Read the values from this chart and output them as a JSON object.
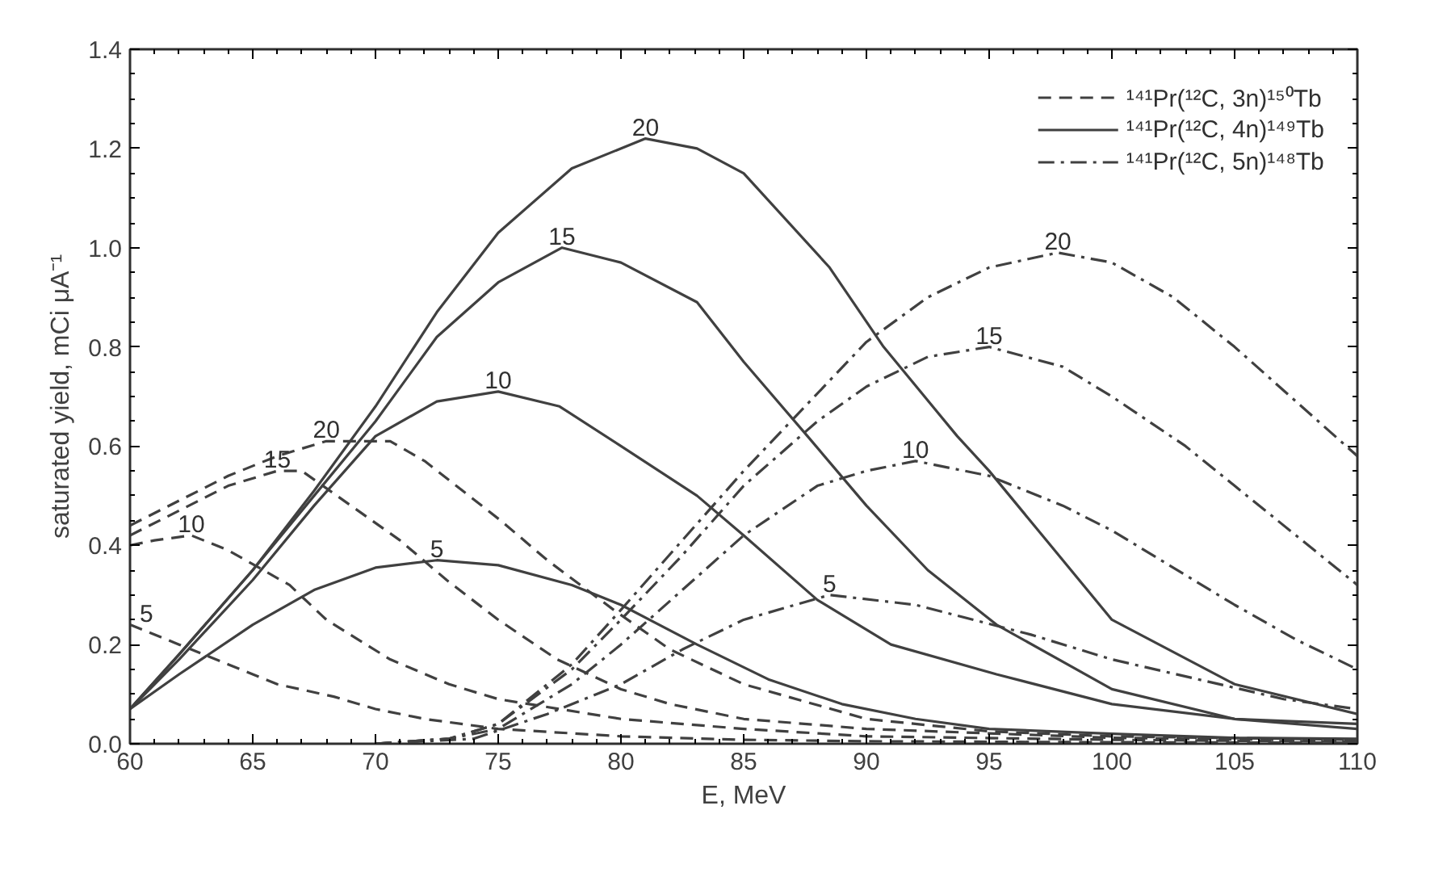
{
  "chart_data": {
    "type": "line",
    "xlabel": "E, MeV",
    "ylabel": "saturated yield, mCi μA⁻¹",
    "xlim": [
      60,
      110
    ],
    "ylim": [
      0,
      1.4
    ],
    "xticks": [
      60,
      65,
      70,
      75,
      80,
      85,
      90,
      95,
      100,
      105,
      110
    ],
    "yticks": [
      {
        "value": 0,
        "label": "0.0"
      },
      {
        "value": 0.2,
        "label": "0.2"
      },
      {
        "value": 0.4,
        "label": "0.4"
      },
      {
        "value": 0.6,
        "label": "0.6"
      },
      {
        "value": 0.8,
        "label": "0.8"
      },
      {
        "value": 1.0,
        "label": "1.0"
      },
      {
        "value": 1.2,
        "label": "1.2"
      },
      {
        "value": 1.4,
        "label": "1.4"
      }
    ],
    "tick_labels": "xy",
    "grid": false,
    "legend": "top right",
    "marker": "none",
    "series": [
      {
        "name": "¹⁴¹Pr(¹²C, 3n)¹⁵⁰Tb",
        "color": "#404040",
        "line_style": "dashed",
        "x": [
          60,
          62,
          64,
          66,
          68.3,
          70,
          72,
          75,
          80,
          85,
          90,
          100,
          110
        ],
        "values": [
          0.24,
          0.2,
          0.16,
          0.12,
          0.095,
          0.07,
          0.05,
          0.03,
          0.015,
          0.008,
          0.005,
          0.003,
          0.002
        ]
      },
      {
        "color": "#404040",
        "line_style": "dashed",
        "x": [
          60,
          61,
          62.5,
          64,
          66.5,
          68,
          70.6,
          73,
          75,
          80,
          85,
          90,
          100,
          110
        ],
        "values": [
          0.4,
          0.41,
          0.42,
          0.39,
          0.32,
          0.25,
          0.17,
          0.12,
          0.09,
          0.05,
          0.03,
          0.015,
          0.008,
          0.004
        ]
      },
      {
        "color": "#404040",
        "line_style": "dashed",
        "x": [
          60,
          62,
          64,
          66,
          67,
          69,
          71,
          72.9,
          75,
          77.4,
          80,
          82,
          85,
          90,
          100,
          110
        ],
        "values": [
          0.42,
          0.47,
          0.52,
          0.55,
          0.55,
          0.48,
          0.41,
          0.33,
          0.25,
          0.17,
          0.11,
          0.08,
          0.05,
          0.03,
          0.012,
          0.006
        ]
      },
      {
        "color": "#404040",
        "line_style": "dashed",
        "x": [
          60,
          62,
          64,
          66,
          68,
          70.6,
          72,
          75.1,
          77,
          79.7,
          82,
          85,
          90,
          95,
          100,
          110
        ],
        "values": [
          0.44,
          0.49,
          0.54,
          0.58,
          0.61,
          0.61,
          0.57,
          0.45,
          0.37,
          0.27,
          0.19,
          0.12,
          0.05,
          0.025,
          0.015,
          0.008
        ]
      },
      {
        "name": "¹⁴¹Pr(¹²C, 4n)¹⁴⁹Tb",
        "color": "#404040",
        "line_style": "solid",
        "x": [
          60,
          62,
          65,
          67.5,
          70,
          72.5,
          75,
          78,
          80,
          83.1,
          86,
          89,
          92,
          95,
          100,
          105,
          110
        ],
        "values": [
          0.07,
          0.14,
          0.24,
          0.31,
          0.355,
          0.37,
          0.36,
          0.32,
          0.28,
          0.2,
          0.13,
          0.08,
          0.05,
          0.03,
          0.02,
          0.012,
          0.01
        ]
      },
      {
        "color": "#404040",
        "line_style": "solid",
        "x": [
          60,
          62,
          65,
          67.5,
          70,
          72.5,
          75,
          77.5,
          80,
          83.1,
          85,
          88,
          91,
          95.3,
          100,
          105,
          110
        ],
        "values": [
          0.07,
          0.17,
          0.33,
          0.48,
          0.62,
          0.69,
          0.71,
          0.68,
          0.6,
          0.5,
          0.42,
          0.29,
          0.2,
          0.14,
          0.08,
          0.05,
          0.04
        ]
      },
      {
        "color": "#404040",
        "line_style": "solid",
        "x": [
          60,
          62,
          65,
          67.5,
          70,
          72.5,
          75,
          77.6,
          80,
          83.1,
          85,
          87.6,
          90,
          92.5,
          95.3,
          100,
          105,
          110
        ],
        "values": [
          0.07,
          0.18,
          0.35,
          0.5,
          0.65,
          0.82,
          0.93,
          1.0,
          0.97,
          0.89,
          0.77,
          0.62,
          0.48,
          0.35,
          0.24,
          0.11,
          0.05,
          0.03
        ]
      },
      {
        "color": "#404040",
        "line_style": "solid",
        "x": [
          60,
          62,
          65,
          67.5,
          70,
          72.5,
          75,
          78,
          81,
          83.1,
          85,
          88.5,
          90.7,
          93.7,
          95,
          97.5,
          100,
          105,
          110
        ],
        "values": [
          0.07,
          0.18,
          0.35,
          0.51,
          0.68,
          0.87,
          1.03,
          1.16,
          1.22,
          1.2,
          1.15,
          0.96,
          0.8,
          0.62,
          0.55,
          0.4,
          0.25,
          0.12,
          0.06
        ]
      },
      {
        "name": "¹⁴¹Pr(¹²C, 5n)¹⁴⁸Tb",
        "color": "#404040",
        "line_style": "dashdot",
        "x": [
          70,
          74,
          77,
          80,
          82.5,
          85,
          88.5,
          92,
          96.7,
          100,
          103.5,
          107,
          110
        ],
        "values": [
          0,
          0.01,
          0.06,
          0.12,
          0.19,
          0.25,
          0.3,
          0.28,
          0.22,
          0.17,
          0.13,
          0.09,
          0.07
        ]
      },
      {
        "color": "#404040",
        "line_style": "dashdot",
        "x": [
          70,
          73,
          75,
          78,
          80,
          82.5,
          85,
          88,
          90,
          92,
          95,
          98,
          100,
          103,
          105,
          107.5,
          110
        ],
        "values": [
          0,
          0.01,
          0.03,
          0.12,
          0.2,
          0.31,
          0.42,
          0.52,
          0.55,
          0.57,
          0.54,
          0.48,
          0.43,
          0.34,
          0.28,
          0.21,
          0.15
        ]
      },
      {
        "color": "#404040",
        "line_style": "dashdot",
        "x": [
          70,
          73,
          75,
          78,
          80,
          82.5,
          85,
          88,
          90,
          92.5,
          95,
          98,
          100,
          103,
          105,
          107.5,
          110
        ],
        "values": [
          0,
          0.01,
          0.04,
          0.15,
          0.25,
          0.38,
          0.52,
          0.65,
          0.72,
          0.78,
          0.8,
          0.76,
          0.7,
          0.6,
          0.52,
          0.42,
          0.32
        ]
      },
      {
        "color": "#404040",
        "line_style": "dashdot",
        "x": [
          70,
          73,
          75,
          78,
          80,
          82.5,
          85,
          87.5,
          90,
          92.5,
          95,
          97.8,
          100,
          102.5,
          105,
          107.5,
          110
        ],
        "values": [
          0,
          0.01,
          0.04,
          0.16,
          0.27,
          0.41,
          0.55,
          0.68,
          0.81,
          0.9,
          0.96,
          0.99,
          0.97,
          0.9,
          0.8,
          0.69,
          0.58
        ]
      }
    ],
    "annotations": [
      "5",
      "10",
      "15",
      "20",
      "5",
      "10",
      "15",
      "20",
      "5",
      "10",
      "15",
      "20"
    ]
  }
}
